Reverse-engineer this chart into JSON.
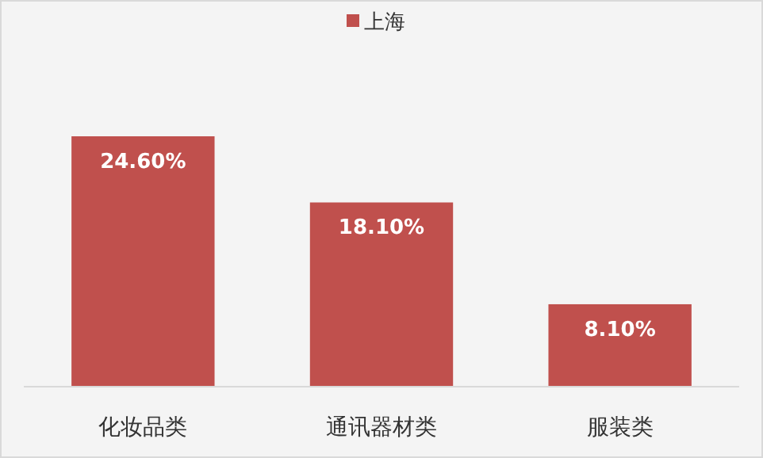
{
  "chart_data": {
    "type": "bar",
    "categories": [
      "化妆品类",
      "通讯器材类",
      "服装类"
    ],
    "series": [
      {
        "name": "上海",
        "color": "#c0504d",
        "values": [
          24.6,
          18.1,
          8.1
        ],
        "value_labels": [
          "24.60%",
          "18.10%",
          "8.10%"
        ]
      }
    ],
    "legend": "top"
  }
}
